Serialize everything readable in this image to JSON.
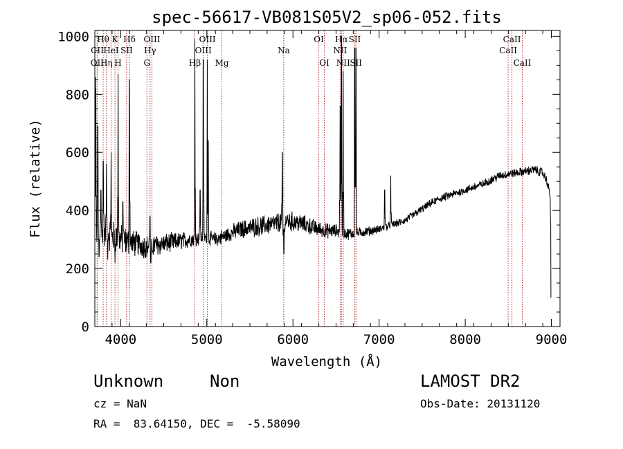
{
  "chart_data": {
    "type": "line",
    "title": "spec-56617-VB081S05V2_sp06-052.fits",
    "xlabel": "Wavelength (Å)",
    "ylabel": "Flux (relative)",
    "xlim": [
      3700,
      9100
    ],
    "ylim": [
      0,
      1020
    ],
    "x_major_ticks": [
      4000,
      5000,
      6000,
      7000,
      8000,
      9000
    ],
    "y_major_ticks": [
      0,
      200,
      400,
      600,
      800,
      1000
    ],
    "x_minor_step": 200,
    "y_minor_step": 50,
    "grid": false,
    "line_color": "#000000",
    "marker_color": "#b03030",
    "spectrum": {
      "anchors": [
        [
          3700,
          310
        ],
        [
          3760,
          320
        ],
        [
          3800,
          330
        ],
        [
          3850,
          320
        ],
        [
          3900,
          310
        ],
        [
          3950,
          305
        ],
        [
          4000,
          300
        ],
        [
          4050,
          295
        ],
        [
          4100,
          290
        ],
        [
          4200,
          285
        ],
        [
          4300,
          275
        ],
        [
          4400,
          280
        ],
        [
          4500,
          285
        ],
        [
          4600,
          290
        ],
        [
          4700,
          295
        ],
        [
          4800,
          300
        ],
        [
          4900,
          305
        ],
        [
          5000,
          305
        ],
        [
          5100,
          300
        ],
        [
          5200,
          310
        ],
        [
          5300,
          325
        ],
        [
          5400,
          335
        ],
        [
          5500,
          340
        ],
        [
          5600,
          345
        ],
        [
          5700,
          350
        ],
        [
          5800,
          355
        ],
        [
          5900,
          365
        ],
        [
          6000,
          360
        ],
        [
          6100,
          355
        ],
        [
          6200,
          345
        ],
        [
          6300,
          335
        ],
        [
          6400,
          330
        ],
        [
          6500,
          330
        ],
        [
          6600,
          320
        ],
        [
          6700,
          320
        ],
        [
          6800,
          325
        ],
        [
          6900,
          330
        ],
        [
          7000,
          335
        ],
        [
          7100,
          345
        ],
        [
          7200,
          355
        ],
        [
          7300,
          365
        ],
        [
          7400,
          385
        ],
        [
          7500,
          405
        ],
        [
          7600,
          425
        ],
        [
          7700,
          440
        ],
        [
          7800,
          450
        ],
        [
          7900,
          460
        ],
        [
          8000,
          470
        ],
        [
          8100,
          480
        ],
        [
          8200,
          490
        ],
        [
          8300,
          505
        ],
        [
          8400,
          520
        ],
        [
          8500,
          525
        ],
        [
          8600,
          530
        ],
        [
          8700,
          535
        ],
        [
          8800,
          540
        ],
        [
          8900,
          530
        ],
        [
          8950,
          500
        ],
        [
          9000,
          430
        ]
      ],
      "noise": [
        [
          3700,
          60
        ],
        [
          4000,
          45
        ],
        [
          4300,
          35
        ],
        [
          5000,
          20
        ],
        [
          5600,
          30
        ],
        [
          6000,
          30
        ],
        [
          6500,
          20
        ],
        [
          7000,
          12
        ],
        [
          8000,
          12
        ],
        [
          9000,
          14
        ]
      ],
      "spikes": [
        [
          3705,
          820
        ],
        [
          3712,
          860
        ],
        [
          3734,
          690
        ],
        [
          3750,
          240
        ],
        [
          3770,
          470
        ],
        [
          3798,
          570
        ],
        [
          3835,
          560
        ],
        [
          3850,
          230
        ],
        [
          3889,
          600
        ],
        [
          3934,
          220
        ],
        [
          3970,
          870
        ],
        [
          4026,
          430
        ],
        [
          4101,
          850
        ],
        [
          4340,
          380
        ],
        [
          4350,
          220
        ],
        [
          4861,
          990
        ],
        [
          4922,
          470
        ],
        [
          4959,
          920
        ],
        [
          5007,
          920
        ],
        [
          5015,
          640
        ],
        [
          5876,
          600
        ],
        [
          5890,
          170
        ],
        [
          5895,
          250
        ],
        [
          6548,
          760
        ],
        [
          6563,
          1000
        ],
        [
          6583,
          880
        ],
        [
          6717,
          960
        ],
        [
          6731,
          960
        ],
        [
          7065,
          470
        ],
        [
          7135,
          520
        ],
        [
          8996,
          100
        ]
      ]
    },
    "line_markers": [
      {
        "label": "OII",
        "x": 3727,
        "row": 3
      },
      {
        "label": "Hθ",
        "x": 3797,
        "row": 1
      },
      {
        "label": "Hη",
        "x": 3835,
        "row": 3
      },
      {
        "label": "CII",
        "x": 3728,
        "row": 2
      },
      {
        "label": "K",
        "x": 3934,
        "row": 1
      },
      {
        "label": "H",
        "x": 3969,
        "row": 3
      },
      {
        "label": "HeI",
        "x": 3889,
        "row": 2
      },
      {
        "label": "SII",
        "x": 4069,
        "row": 2
      },
      {
        "label": "Hδ",
        "x": 4102,
        "row": 1
      },
      {
        "label": "G",
        "x": 4305,
        "row": 3
      },
      {
        "label": "Hγ",
        "x": 4341,
        "row": 2
      },
      {
        "label": "OIII",
        "x": 4363,
        "row": 1
      },
      {
        "label": "Hβ",
        "x": 4861,
        "row": 3
      },
      {
        "label": "OIII",
        "x": 4959,
        "row": 2
      },
      {
        "label": "OIII",
        "x": 5007,
        "row": 1
      },
      {
        "label": "Mg",
        "x": 5175,
        "row": 3
      },
      {
        "label": "Na",
        "x": 5893,
        "row": 2
      },
      {
        "label": "OI",
        "x": 6300,
        "row": 1
      },
      {
        "label": "OI",
        "x": 6364,
        "row": 3
      },
      {
        "label": "NII",
        "x": 6548,
        "row": 2
      },
      {
        "label": "Hα",
        "x": 6563,
        "row": 1
      },
      {
        "label": "NII",
        "x": 6583,
        "row": 3
      },
      {
        "label": "SII",
        "x": 6717,
        "row": 1
      },
      {
        "label": "SII",
        "x": 6731,
        "row": 3
      },
      {
        "label": "CaII",
        "x": 8498,
        "row": 2
      },
      {
        "label": "CaII",
        "x": 8542,
        "row": 1
      },
      {
        "label": "CaII",
        "x": 8662,
        "row": 3
      }
    ]
  },
  "info": {
    "class": "Unknown",
    "subclass": "Non",
    "cz": "cz = NaN",
    "radec": "RA =  83.64150, DEC =  -5.58090",
    "survey": "LAMOST DR2",
    "obs_date": "Obs-Date: 20131120"
  }
}
